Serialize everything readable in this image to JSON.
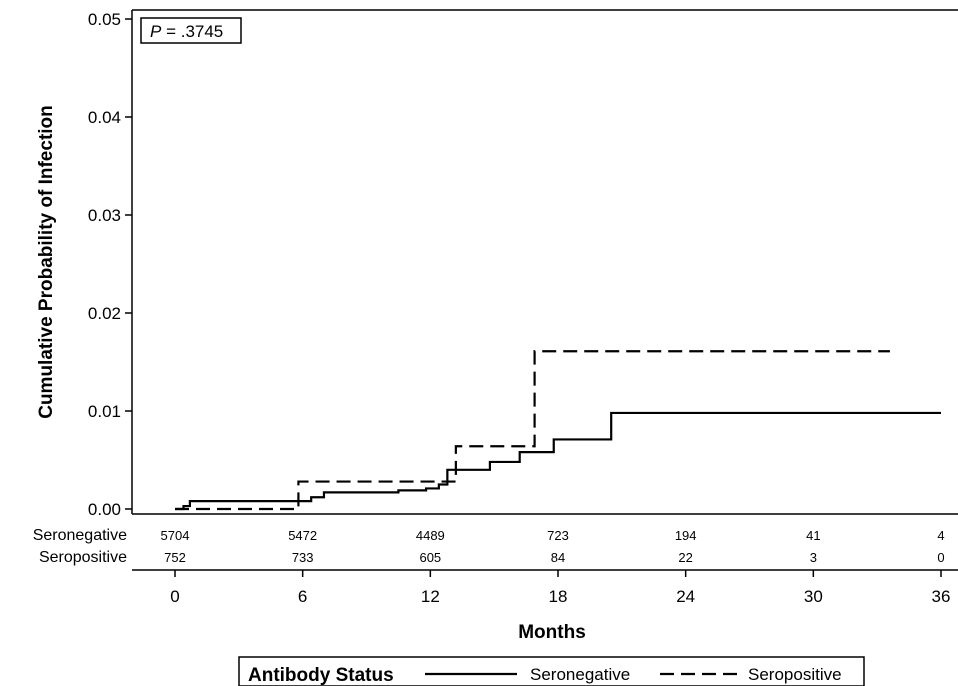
{
  "chart_data": {
    "type": "line",
    "subtype": "kaplan-meier-step",
    "xlabel": "Months",
    "ylabel": "Cumulative Probability of Infection",
    "xlim": [
      0,
      36
    ],
    "ylim": [
      0,
      0.05
    ],
    "x_ticks": [
      0,
      6,
      12,
      18,
      24,
      30,
      36
    ],
    "y_ticks": [
      0.0,
      0.01,
      0.02,
      0.03,
      0.04,
      0.05
    ],
    "y_tick_labels": [
      "0.00",
      "0.01",
      "0.02",
      "0.03",
      "0.04",
      "0.05"
    ],
    "annotation": {
      "p_label": "P",
      "p_value": " = .3745"
    },
    "legend": {
      "title": "Antibody Status",
      "placement": "bottom"
    },
    "series": [
      {
        "name": "Seronegative",
        "style": "solid",
        "points": [
          [
            0,
            0
          ],
          [
            0.4,
            0.0003
          ],
          [
            0.7,
            0.0008
          ],
          [
            5.6,
            0.0008
          ],
          [
            6.4,
            0.0012
          ],
          [
            7,
            0.0017
          ],
          [
            10.5,
            0.0019
          ],
          [
            11.8,
            0.0021
          ],
          [
            12.4,
            0.0025
          ],
          [
            12.8,
            0.004
          ],
          [
            14.8,
            0.0048
          ],
          [
            16.2,
            0.0058
          ],
          [
            17.8,
            0.0071
          ],
          [
            20.5,
            0.0098
          ],
          [
            36,
            0.0098
          ]
        ]
      },
      {
        "name": "Seropositive",
        "style": "dashed",
        "points": [
          [
            0,
            0
          ],
          [
            5.8,
            0.0028
          ],
          [
            13.2,
            0.0064
          ],
          [
            16.9,
            0.0161
          ],
          [
            33.6,
            0.0161
          ]
        ]
      }
    ],
    "at_risk": {
      "x": [
        0,
        6,
        12,
        18,
        24,
        30,
        36
      ],
      "rows": [
        {
          "label": "Seronegative",
          "values": [
            "5704",
            "5472",
            "4489",
            "723",
            "194",
            "41",
            "4"
          ]
        },
        {
          "label": "Seropositive",
          "values": [
            "752",
            "733",
            "605",
            "84",
            "22",
            "3",
            "0"
          ]
        }
      ]
    }
  }
}
